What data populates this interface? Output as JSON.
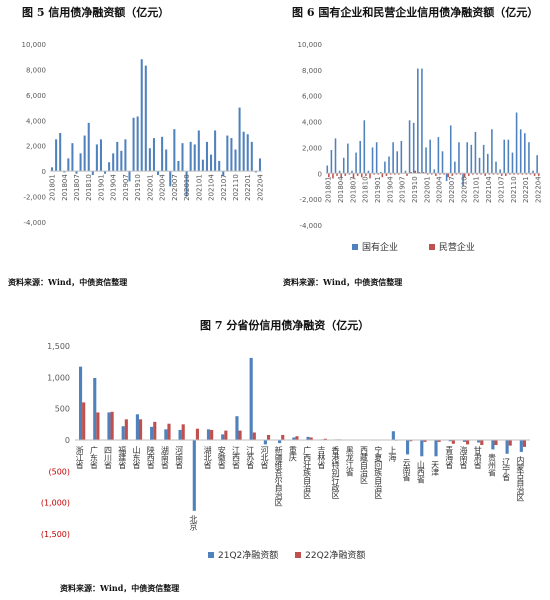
{
  "fig5": {
    "title": "图 5 信用债净融资额（亿元）",
    "source": "资料来源：Wind，中债资信整理"
  },
  "fig6": {
    "title": "图 6 国有企业和民营企业信用债净融资额（亿元）",
    "source": "资料来源：Wind，中债资信整理"
  },
  "fig7": {
    "title": "图 7 分省份信用债净融资（亿元）",
    "source": "资料来源：Wind，中债资信整理"
  },
  "colors": {
    "blue": "#4f81bd",
    "red": "#c0504d",
    "axis": "#bfbfbf",
    "grid": "#e5e5e5",
    "neg": "#c00000"
  },
  "chart_data": [
    {
      "type": "bar",
      "title": "信用债净融资额（亿元）",
      "x_tick_labels": [
        "201801",
        "201804",
        "201807",
        "201810",
        "201901",
        "201904",
        "201907",
        "201910",
        "202001",
        "202004",
        "202007",
        "202010",
        "202101",
        "202104",
        "202107",
        "202110",
        "202201",
        "202204"
      ],
      "ylim": [
        -4000,
        10000
      ],
      "yticks": [
        -4000,
        -2000,
        0,
        2000,
        4000,
        6000,
        8000,
        10000
      ],
      "ytick_labels": [
        "-4,000",
        "-2,000",
        "0",
        "2,000",
        "4,000",
        "6,000",
        "8,000",
        "10,000"
      ],
      "grid": false,
      "series": [
        {
          "values": [
            300,
            2500,
            3000,
            -100,
            1000,
            2200,
            -200,
            1400,
            2800,
            3800,
            -300,
            2100,
            2500,
            -200,
            700,
            1400,
            2300,
            1600,
            2500,
            -800,
            4200,
            4300,
            8800,
            8300,
            1800,
            2600,
            -300,
            2700,
            1700,
            -1200,
            3300,
            800,
            2200,
            -2000,
            2300,
            2100,
            3200,
            900,
            2300,
            1300,
            3200,
            800,
            -400,
            2800,
            2600,
            1700,
            5000,
            3100,
            2900,
            2300,
            -100,
            1000
          ]
        }
      ]
    },
    {
      "type": "bar",
      "title": "国有企业和民营企业信用债净融资额（亿元）",
      "x_tick_labels": [
        "201801",
        "201804",
        "201807",
        "201810",
        "201901",
        "201904",
        "201907",
        "201910",
        "202001",
        "202004",
        "202007",
        "202010",
        "202101",
        "202104",
        "202107",
        "202110",
        "202201",
        "202204"
      ],
      "ylim": [
        -4000,
        10000
      ],
      "yticks": [
        -4000,
        -2000,
        0,
        2000,
        4000,
        6000,
        8000,
        10000
      ],
      "ytick_labels": [
        "-4,000",
        "-2,000",
        "0",
        "2,000",
        "4,000",
        "6,000",
        "8,000",
        "10,000"
      ],
      "legend_position": "bottom",
      "grid": false,
      "series": [
        {
          "name": "国有企业",
          "values": [
            600,
            1800,
            2700,
            200,
            1200,
            2300,
            200,
            1600,
            2500,
            4100,
            200,
            2000,
            2400,
            100,
            900,
            1300,
            2400,
            1700,
            2500,
            200,
            4100,
            3900,
            8100,
            8100,
            2000,
            2600,
            300,
            2800,
            1700,
            -600,
            3700,
            900,
            2400,
            -1000,
            2400,
            2200,
            3200,
            1200,
            2200,
            1500,
            3400,
            900,
            300,
            2600,
            2600,
            1600,
            4700,
            3400,
            3100,
            2400,
            200,
            1400
          ]
        },
        {
          "name": "民营企业",
          "values": [
            -300,
            -400,
            -200,
            -300,
            -200,
            -100,
            -400,
            -200,
            -300,
            -200,
            -400,
            -100,
            -100,
            -300,
            -200,
            -100,
            -100,
            -100,
            0,
            -200,
            100,
            200,
            100,
            100,
            -100,
            -100,
            -200,
            -100,
            -100,
            -300,
            -200,
            -100,
            -100,
            -300,
            -200,
            -100,
            -100,
            -100,
            -200,
            -100,
            -100,
            -100,
            -200,
            -200,
            -100,
            -100,
            -100,
            -100,
            -100,
            -100,
            -200,
            -200
          ]
        }
      ]
    },
    {
      "type": "bar",
      "title": "分省份信用债净融资（亿元）",
      "categories": [
        "浙江省",
        "广东省",
        "四川省",
        "福建省",
        "山东省",
        "陕西省",
        "湖南省",
        "河南省",
        "北京",
        "湖北省",
        "安徽省",
        "江西省",
        "江苏省",
        "河北省",
        "新疆维吾尔自治区",
        "重庆",
        "广西壮族自治区",
        "吉林省",
        "香港特别行政区",
        "黑龙江省",
        "西藏自治区",
        "宁夏回族自治区",
        "上海",
        "云南省",
        "山西省",
        "天津",
        "青海省",
        "海南省",
        "甘肃省",
        "贵州省",
        "辽宁省",
        "内蒙古自治区"
      ],
      "ylim": [
        -1500,
        1500
      ],
      "yticks": [
        -1500,
        -1000,
        -500,
        0,
        500,
        1000,
        1500
      ],
      "ytick_labels": [
        "(1,500)",
        "(1,000)",
        "(500)",
        "0",
        "500",
        "1,000",
        "1,500"
      ],
      "legend_position": "bottom",
      "grid": false,
      "series": [
        {
          "name": "21Q2净融资额",
          "values": [
            1170,
            990,
            440,
            220,
            410,
            210,
            170,
            160,
            -1130,
            170,
            90,
            380,
            1310,
            -70,
            -50,
            40,
            50,
            10,
            10,
            5,
            5,
            5,
            140,
            -230,
            -260,
            -260,
            -20,
            -30,
            -40,
            -150,
            -220,
            -190
          ]
        },
        {
          "name": "22Q2净融资额",
          "values": [
            600,
            440,
            450,
            330,
            330,
            290,
            260,
            250,
            180,
            160,
            150,
            150,
            120,
            80,
            80,
            60,
            40,
            20,
            10,
            5,
            5,
            -5,
            -10,
            -20,
            -30,
            -30,
            -60,
            -70,
            -80,
            -80,
            -90,
            -110
          ]
        }
      ]
    }
  ]
}
